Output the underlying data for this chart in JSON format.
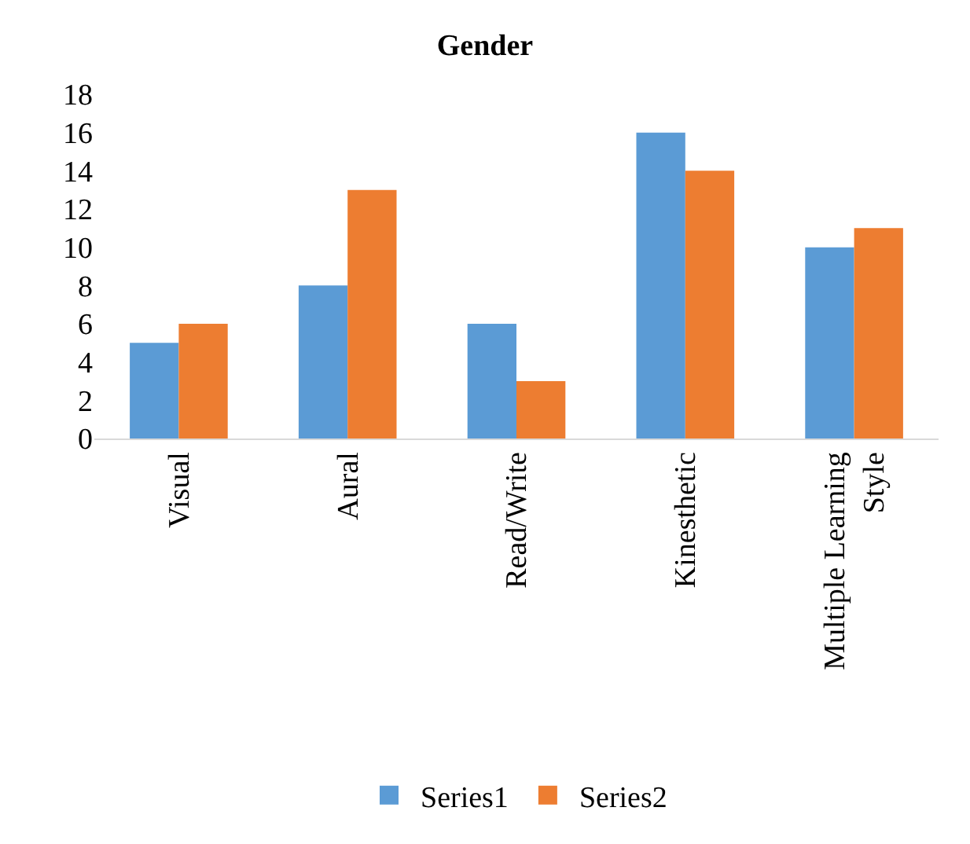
{
  "chart_data": {
    "type": "bar",
    "title": "Gender",
    "categories": [
      "Visual",
      "Aural",
      "Read/Write",
      "Kinesthetic",
      "Multiple Learning Style"
    ],
    "series": [
      {
        "name": "Series1",
        "color": "#5b9bd5",
        "values": [
          5,
          8,
          6,
          16,
          10
        ]
      },
      {
        "name": "Series2",
        "color": "#ed7d31",
        "values": [
          6,
          13,
          3,
          14,
          11
        ]
      }
    ],
    "ylim": [
      0,
      18
    ],
    "yticks": [
      0,
      2,
      4,
      6,
      8,
      10,
      12,
      14,
      16,
      18
    ],
    "grid": false,
    "legend": "bottom"
  }
}
